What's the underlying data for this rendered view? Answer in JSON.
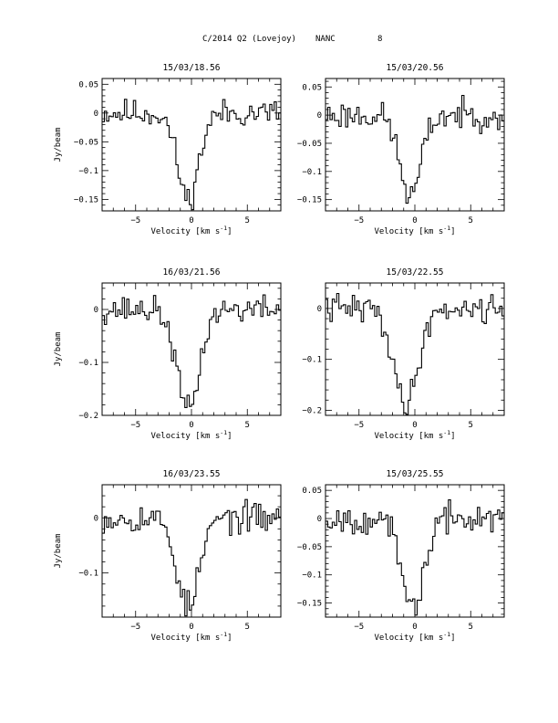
{
  "header": {
    "object": "C/2014 Q2 (Lovejoy)",
    "station": "NANC",
    "page_number": "8"
  },
  "chart_data": [
    {
      "type": "line",
      "title": "15/03/18.56",
      "xlabel": "Velocity [km s",
      "xlabel_sup": "-1",
      "xlabel_tail": "]",
      "ylabel": "Jy/beam",
      "xlim": [
        -8,
        8
      ],
      "ylim": [
        -0.17,
        0.06
      ],
      "xticks": [
        -5,
        0,
        5
      ],
      "yticks": [
        0.05,
        0,
        -0.05,
        -0.1,
        -0.15
      ],
      "ytick_labels": [
        "0.05",
        "0",
        "−0.05",
        "−0.1",
        "−0.15"
      ],
      "center": -0.3,
      "depth": 0.15,
      "width": 1.5,
      "noise": 0.017,
      "seed": 11
    },
    {
      "type": "line",
      "title": "15/03/20.56",
      "xlabel": "Velocity [km s",
      "xlabel_sup": "-1",
      "xlabel_tail": "]",
      "ylabel": "",
      "xlim": [
        -8,
        8
      ],
      "ylim": [
        -0.17,
        0.065
      ],
      "xticks": [
        -5,
        0,
        5
      ],
      "yticks": [
        0.05,
        0,
        -0.05,
        -0.1,
        -0.15
      ],
      "ytick_labels": [
        "0.05",
        "0",
        "−0.05",
        "−0.1",
        "−0.15"
      ],
      "center": -0.4,
      "depth": 0.145,
      "width": 1.5,
      "noise": 0.018,
      "seed": 23
    },
    {
      "type": "line",
      "title": "16/03/21.56",
      "xlabel": "Velocity [km s",
      "xlabel_sup": "-1",
      "xlabel_tail": "]",
      "ylabel": "Jy/beam",
      "xlim": [
        -8,
        8
      ],
      "ylim": [
        -0.2,
        0.05
      ],
      "xticks": [
        -5,
        0,
        5
      ],
      "yticks": [
        0,
        -0.1,
        -0.2
      ],
      "ytick_labels": [
        "0",
        "−0.1",
        "−0.2"
      ],
      "center": -0.3,
      "depth": 0.19,
      "width": 1.6,
      "noise": 0.018,
      "seed": 37
    },
    {
      "type": "line",
      "title": "15/03/22.55",
      "xlabel": "Velocity [km s",
      "xlabel_sup": "-1",
      "xlabel_tail": "]",
      "ylabel": "",
      "xlim": [
        -8,
        8
      ],
      "ylim": [
        -0.21,
        0.05
      ],
      "xticks": [
        -5,
        0,
        5
      ],
      "yticks": [
        0,
        -0.1,
        -0.2
      ],
      "ytick_labels": [
        "0",
        "−0.1",
        "−0.2"
      ],
      "center": -0.8,
      "depth": 0.19,
      "width": 1.7,
      "noise": 0.02,
      "seed": 41
    },
    {
      "type": "line",
      "title": "16/03/23.55",
      "xlabel": "Velocity [km s",
      "xlabel_sup": "-1",
      "xlabel_tail": "]",
      "ylabel": "Jy/beam",
      "xlim": [
        -8,
        8
      ],
      "ylim": [
        -0.18,
        0.06
      ],
      "xticks": [
        -5,
        0,
        5
      ],
      "yticks": [
        0,
        -0.1
      ],
      "ytick_labels": [
        "0",
        "−0.1"
      ],
      "center": -0.3,
      "depth": 0.16,
      "width": 1.6,
      "noise": 0.019,
      "seed": 53
    },
    {
      "type": "line",
      "title": "15/03/25.55",
      "xlabel": "Velocity [km s",
      "xlabel_sup": "-1",
      "xlabel_tail": "]",
      "ylabel": "",
      "xlim": [
        -8,
        8
      ],
      "ylim": [
        -0.175,
        0.06
      ],
      "xticks": [
        -5,
        0,
        5
      ],
      "yticks": [
        0.05,
        0,
        -0.05,
        -0.1,
        -0.15
      ],
      "ytick_labels": [
        "0.05",
        "0",
        "−0.05",
        "−0.1",
        "−0.15"
      ],
      "center": -0.2,
      "depth": 0.16,
      "width": 1.6,
      "noise": 0.018,
      "seed": 67
    }
  ]
}
